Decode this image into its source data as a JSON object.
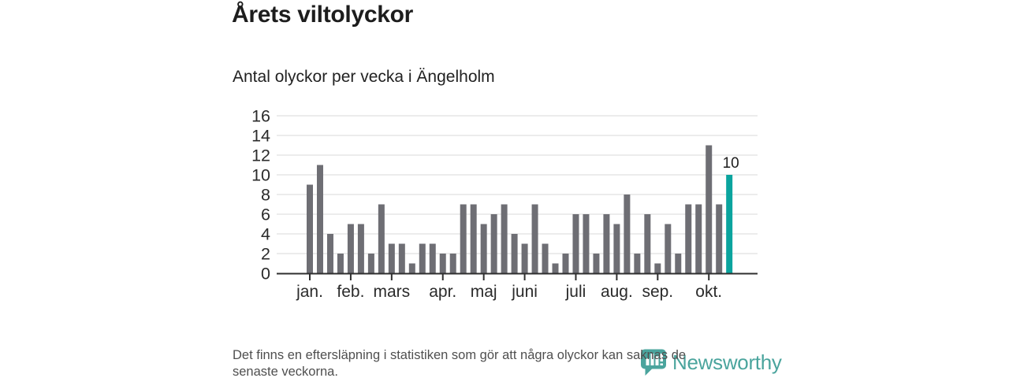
{
  "header": {
    "title": "Årets viltolyckor",
    "subtitle": "Antal olyckor per vecka i Ängelholm"
  },
  "chart_data": {
    "type": "bar",
    "title": "Årets viltolyckor",
    "subtitle": "Antal olyckor per vecka i Ängelholm",
    "ylabel": "Antal olyckor per vecka",
    "xlabel": "",
    "ylim": [
      0,
      16
    ],
    "yticks": [
      0,
      2,
      4,
      6,
      8,
      10,
      12,
      14,
      16
    ],
    "grid": true,
    "legend": false,
    "values": [
      9,
      11,
      4,
      2,
      5,
      5,
      2,
      7,
      3,
      3,
      1,
      3,
      3,
      2,
      2,
      7,
      7,
      5,
      6,
      7,
      4,
      3,
      7,
      3,
      1,
      2,
      6,
      6,
      2,
      6,
      5,
      8,
      2,
      6,
      1,
      5,
      2,
      7,
      7,
      13,
      7,
      10
    ],
    "highlight_index": 41,
    "highlight_value_label": "10",
    "month_ticks": [
      {
        "label": "jan.",
        "week_index": 0
      },
      {
        "label": "feb.",
        "week_index": 4
      },
      {
        "label": "mars",
        "week_index": 8
      },
      {
        "label": "apr.",
        "week_index": 13
      },
      {
        "label": "maj",
        "week_index": 17
      },
      {
        "label": "juni",
        "week_index": 21
      },
      {
        "label": "juli",
        "week_index": 26
      },
      {
        "label": "aug.",
        "week_index": 30
      },
      {
        "label": "sep.",
        "week_index": 34
      },
      {
        "label": "okt.",
        "week_index": 39
      }
    ],
    "colors": {
      "bar": "#6e6e74",
      "highlight": "#0aa49e",
      "gridline": "#e1e1e1",
      "axis": "#2f2f2f",
      "tick_label": "#2b2b2b",
      "value_label": "#1d1d1d"
    }
  },
  "footer": {
    "note_line1": "Det finns en eftersläpning i statistiken som gör att några olyckor kan saknas de",
    "note_line2": "senaste veckorna.",
    "logo_text": "Newsworthy",
    "logo_color": "#3d9e96"
  }
}
